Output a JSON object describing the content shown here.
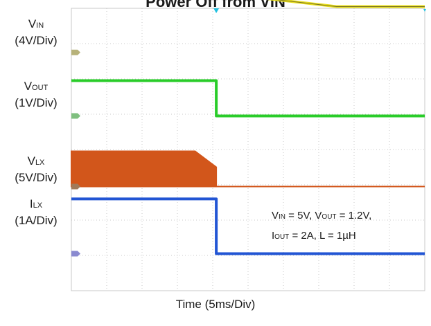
{
  "title": "Power Off from VIN",
  "channel_labels": [
    {
      "sym": "V",
      "sub": "IN",
      "scale": "(4V/Div)"
    },
    {
      "sym": "V",
      "sub": "OUT",
      "scale": "(1V/Div)"
    },
    {
      "sym": "V",
      "sub": "LX",
      "scale": "(5V/Div)"
    },
    {
      "sym": "I",
      "sub": "LX",
      "scale": "(1A/Div)"
    }
  ],
  "conditions": {
    "line1": [
      {
        "t": "V"
      },
      {
        "t": "IN",
        "sub": true
      },
      {
        "t": " = 5V, V"
      },
      {
        "t": "OUT",
        "sub": true
      },
      {
        "t": " = 1.2V,"
      }
    ],
    "line2": [
      {
        "t": "I"
      },
      {
        "t": "OUT",
        "sub": true
      },
      {
        "t": " = 2A, L = 1µH"
      }
    ]
  },
  "xlabel": "Time (5ms/Div)",
  "chart_data": {
    "type": "line",
    "grid": {
      "x_divisions": 10,
      "y_divisions": 8,
      "on": true
    },
    "x_unit_per_div": "5ms",
    "trigger_div": 4.1,
    "colors": {
      "vin": "#e6dc1e",
      "vout": "#29cc29",
      "vlx": "#d2561b",
      "ilx": "#2255d4",
      "grid": "#c8c8c8",
      "marker_vin": "#b7b27a",
      "marker_vout": "#7fbf7f",
      "marker_vlx": "#a07a5a",
      "marker_ilx": "#8a8ad0",
      "trigger": "#20c0e0",
      "vin_level_marker": "#2a8a8a"
    },
    "series": [
      {
        "name": "VIN",
        "color_key": "vin",
        "ground_div": 1.25,
        "points": [
          [
            0,
            2.3
          ],
          [
            3.4,
            2.3
          ],
          [
            4.0,
            1.7
          ],
          [
            7.5,
            1.3
          ],
          [
            10,
            1.3
          ]
        ]
      },
      {
        "name": "VOUT",
        "color_key": "vout",
        "ground_div": 3.05,
        "points": [
          [
            0,
            1.0
          ],
          [
            4.1,
            1.0
          ],
          [
            4.1,
            0
          ],
          [
            10,
            0
          ]
        ]
      },
      {
        "name": "VLX",
        "color_key": "vlx",
        "ground_div": 5.05,
        "switching": true,
        "points": [
          [
            0,
            1.0
          ],
          [
            3.5,
            1.0
          ],
          [
            4.1,
            0.55
          ],
          [
            4.1,
            0
          ],
          [
            10,
            0
          ]
        ]
      },
      {
        "name": "ILX",
        "color_key": "ilx",
        "ground_div": 6.95,
        "points": [
          [
            0,
            1.55
          ],
          [
            4.1,
            1.55
          ],
          [
            4.1,
            0
          ],
          [
            10,
            0
          ]
        ]
      }
    ]
  }
}
